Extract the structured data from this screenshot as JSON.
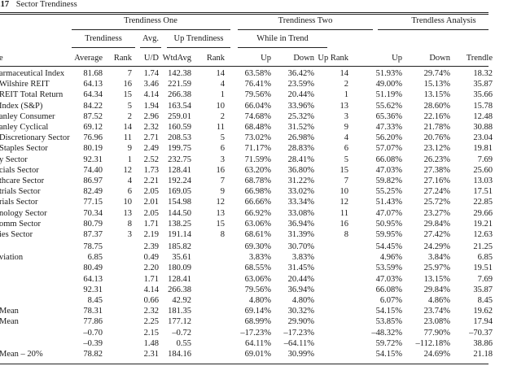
{
  "caption": {
    "number": ".17",
    "title": "Sector Trendiness"
  },
  "groups": {
    "trendiness_one": "Trendiness One",
    "trendiness_two": "Trendiness Two",
    "trendless_analysis": "Trendless Analysis"
  },
  "subgroups": {
    "trendiness": "Trendiness",
    "avg": "Avg.",
    "up_trendiness": "Up Trendiness",
    "while_in_trend": "While in Trend"
  },
  "columns": [
    "Average",
    "Rank",
    "U/D",
    "WtdAvg",
    "Rank",
    "Up",
    "Down",
    "Up Rank",
    "Up",
    "Down",
    "Trendle"
  ],
  "row_label_header": "e",
  "rows": [
    {
      "label": "armaceutical Index",
      "cells": [
        "81.68",
        "7",
        "1.74",
        "142.38",
        "14",
        "63.58%",
        "36.42%",
        "14",
        "51.93%",
        "29.74%",
        "18.32"
      ]
    },
    {
      "label": "Wilshire REIT",
      "cells": [
        "64.13",
        "16",
        "3.46",
        "221.59",
        "4",
        "76.41%",
        "23.59%",
        "2",
        "49.00%",
        "15.13%",
        "35.87"
      ]
    },
    {
      "label": "REIT Total Return",
      "cells": [
        "64.34",
        "15",
        "4.14",
        "266.38",
        "1",
        "79.56%",
        "20.44%",
        "1",
        "51.19%",
        "13.15%",
        "35.66"
      ]
    },
    {
      "label": "Index (S&P)",
      "cells": [
        "84.22",
        "5",
        "1.94",
        "163.54",
        "10",
        "66.04%",
        "33.96%",
        "13",
        "55.62%",
        "28.60%",
        "15.78"
      ]
    },
    {
      "label": "anley Consumer",
      "cells": [
        "87.52",
        "2",
        "2.96",
        "259.01",
        "2",
        "74.68%",
        "25.32%",
        "3",
        "65.36%",
        "22.16%",
        "12.48"
      ]
    },
    {
      "label": "anley Cyclical",
      "cells": [
        "69.12",
        "14",
        "2.32",
        "160.59",
        "11",
        "68.48%",
        "31.52%",
        "9",
        "47.33%",
        "21.78%",
        "30.88"
      ]
    },
    {
      "label": "Discretionary Sector",
      "cells": [
        "76.96",
        "11",
        "2.71",
        "208.53",
        "5",
        "73.02%",
        "26.98%",
        "4",
        "56.20%",
        "20.76%",
        "23.04"
      ]
    },
    {
      "label": "Staples Sector",
      "cells": [
        "80.19",
        "9",
        "2.49",
        "199.75",
        "6",
        "71.17%",
        "28.83%",
        "6",
        "57.07%",
        "23.12%",
        "19.81"
      ]
    },
    {
      "label": "y Sector",
      "cells": [
        "92.31",
        "1",
        "2.52",
        "232.75",
        "3",
        "71.59%",
        "28.41%",
        "5",
        "66.08%",
        "26.23%",
        "7.69"
      ]
    },
    {
      "label": "cials Sector",
      "cells": [
        "74.40",
        "12",
        "1.73",
        "128.41",
        "16",
        "63.20%",
        "36.80%",
        "15",
        "47.03%",
        "27.38%",
        "25.60"
      ]
    },
    {
      "label": "thcare Sector",
      "cells": [
        "86.97",
        "4",
        "2.21",
        "192.24",
        "7",
        "68.78%",
        "31.22%",
        "7",
        "59.82%",
        "27.16%",
        "13.03"
      ]
    },
    {
      "label": "trials Sector",
      "cells": [
        "82.49",
        "6",
        "2.05",
        "169.05",
        "9",
        "66.98%",
        "33.02%",
        "10",
        "55.25%",
        "27.24%",
        "17.51"
      ]
    },
    {
      "label": "rials Sector",
      "cells": [
        "77.15",
        "10",
        "2.01",
        "154.98",
        "12",
        "66.66%",
        "33.34%",
        "12",
        "51.43%",
        "25.72%",
        "22.85"
      ]
    },
    {
      "label": "nology Sector",
      "cells": [
        "70.34",
        "13",
        "2.05",
        "144.50",
        "13",
        "66.92%",
        "33.08%",
        "11",
        "47.07%",
        "23.27%",
        "29.66"
      ]
    },
    {
      "label": "omm Sector",
      "cells": [
        "80.79",
        "8",
        "1.71",
        "138.25",
        "15",
        "63.06%",
        "36.94%",
        "16",
        "50.95%",
        "29.84%",
        "19.21"
      ]
    },
    {
      "label": "ies Sector",
      "cells": [
        "87.37",
        "3",
        "2.19",
        "191.14",
        "8",
        "68.61%",
        "31.39%",
        "8",
        "59.95%",
        "27.42%",
        "12.63"
      ]
    }
  ],
  "summary": [
    {
      "label": "",
      "cells": [
        "78.75",
        "",
        "2.39",
        "185.82",
        "",
        "69.30%",
        "30.70%",
        "",
        "54.45%",
        "24.29%",
        "21.25"
      ]
    },
    {
      "label": "viation",
      "cells": [
        "6.85",
        "",
        "0.49",
        "35.61",
        "",
        "3.83%",
        "3.83%",
        "",
        "4.96%",
        "3.84%",
        "6.85"
      ]
    },
    {
      "label": "",
      "cells": [
        "80.49",
        "",
        "2.20",
        "180.09",
        "",
        "68.55%",
        "31.45%",
        "",
        "53.59%",
        "25.97%",
        "19.51"
      ]
    },
    {
      "label": "",
      "cells": [
        "64.13",
        "",
        "1.71",
        "128.41",
        "",
        "63.06%",
        "20.44%",
        "",
        "47.03%",
        "13.15%",
        "7.69"
      ]
    },
    {
      "label": "",
      "cells": [
        "92.31",
        "",
        "4.14",
        "266.38",
        "",
        "79.56%",
        "36.94%",
        "",
        "66.08%",
        "29.84%",
        "35.87"
      ]
    },
    {
      "label": "",
      "cells": [
        "8.45",
        "",
        "0.66",
        "42.92",
        "",
        "4.80%",
        "4.80%",
        "",
        "6.07%",
        "4.86%",
        "8.45"
      ]
    },
    {
      "label": "Mean",
      "cells": [
        "78.31",
        "",
        "2.32",
        "181.35",
        "",
        "69.14%",
        "30.32%",
        "",
        "54.15%",
        "23.74%",
        "19.62"
      ]
    },
    {
      "label": "Mean",
      "cells": [
        "77.86",
        "",
        "2.25",
        "177.12",
        "",
        "68.99%",
        "29.90%",
        "",
        "53.85%",
        "23.08%",
        "17.94"
      ]
    },
    {
      "label": "",
      "cells": [
        "–0.70",
        "",
        "2.15",
        "–0.72",
        "",
        "–17.23%",
        "–17.23%",
        "",
        "–48.32%",
        "77.90%",
        "–70.37"
      ]
    },
    {
      "label": "",
      "cells": [
        "–0.39",
        "",
        "1.48",
        "0.55",
        "",
        "64.11%",
        "–64.11%",
        "",
        "59.72%",
        "–112.18%",
        "38.86"
      ]
    },
    {
      "label": "Mean – 20%",
      "cells": [
        "78.82",
        "",
        "2.31",
        "184.16",
        "",
        "69.01%",
        "30.99%",
        "",
        "54.15%",
        "24.69%",
        "21.18"
      ]
    }
  ]
}
